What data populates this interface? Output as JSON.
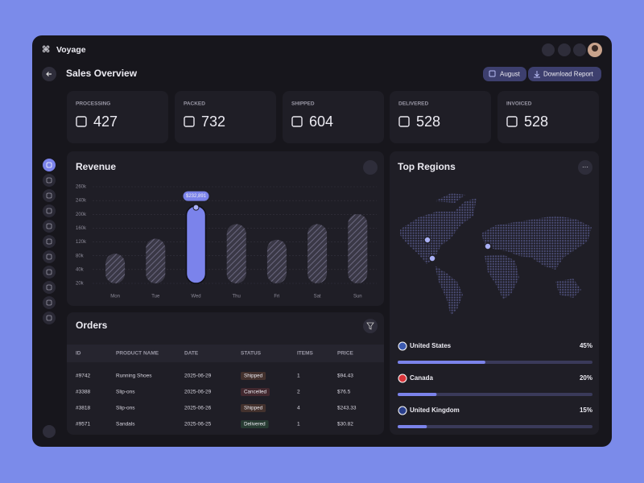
{
  "header": {
    "brand": "Voyage"
  },
  "page": {
    "title": "Sales Overview",
    "buttons": [
      "August",
      "Download Report"
    ]
  },
  "stats": [
    {
      "label": "PROCESSING",
      "value": 427
    },
    {
      "label": "PACKED",
      "value": 732
    },
    {
      "label": "SHIPPED",
      "value": 604
    },
    {
      "label": "DELIVERED",
      "value": 528
    },
    {
      "label": "INVOICED",
      "value": 528
    }
  ],
  "chart_data": {
    "type": "bar",
    "title": "Revenue",
    "categories": [
      "Mon",
      "Tue",
      "Wed",
      "Thu",
      "Fri",
      "Sat",
      "Sun"
    ],
    "values": [
      89000,
      134000,
      232891,
      178000,
      131000,
      178000,
      208000
    ],
    "value_labels": [
      null,
      null,
      "$232,891",
      null,
      null,
      null,
      null
    ],
    "color": "#7b83eb",
    "ylim": [
      0,
      290000
    ],
    "yticks": [
      {
        "value": 260000,
        "label": "260k"
      },
      {
        "value": 240000,
        "label": "240k"
      },
      {
        "value": 200000,
        "label": "200k"
      },
      {
        "value": 160000,
        "label": "160k"
      },
      {
        "value": 120000,
        "label": "120k"
      },
      {
        "value": 80000,
        "label": "80k"
      },
      {
        "value": 40000,
        "label": "40k"
      },
      {
        "value": 20000,
        "label": "20k"
      }
    ],
    "grid": true
  },
  "regions": {
    "title": "Top Regions",
    "items": [
      {
        "name": "United States",
        "value": 45,
        "value_label": "45%"
      },
      {
        "name": "Canada",
        "value": 20,
        "value_label": "20%"
      },
      {
        "name": "United Kingdom",
        "value": 15,
        "value_label": "15%"
      }
    ]
  },
  "orders": {
    "title": "Orders",
    "columns": [
      "ID",
      "PRODUCT NAME",
      "DATE",
      "STATUS",
      "ITEMS",
      "PRICE"
    ],
    "rows": [
      {
        "id": "#9742",
        "product": "Running Shoes",
        "date": "2025-06-29",
        "status": "Shipped",
        "status_color": "#e88a4c",
        "items": 1,
        "price": "$94.43"
      },
      {
        "id": "#3388",
        "product": "Slip-ons",
        "date": "2025-06-29",
        "status": "Cancelled",
        "status_color": "#e65757",
        "items": 2,
        "price": "$76.5"
      },
      {
        "id": "#3818",
        "product": "Slip-ons",
        "date": "2025-06-26",
        "status": "Shipped",
        "status_color": "#e88a4c",
        "items": 4,
        "price": "$243.33"
      },
      {
        "id": "#9571",
        "product": "Sandals",
        "date": "2025-06-25",
        "status": "Delivered",
        "status_color": "#4fc46b",
        "items": 1,
        "price": "$30.82"
      }
    ]
  }
}
